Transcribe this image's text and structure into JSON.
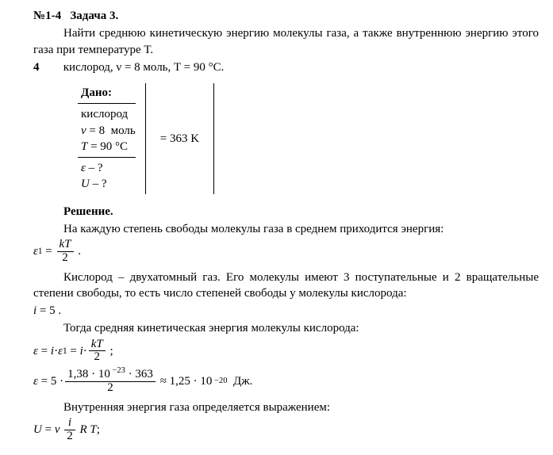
{
  "header": {
    "num": "№1-4",
    "task_label": "Задача 3."
  },
  "prompt": {
    "p1": "Найти среднюю кинетическую энергию молекулы газа, а также внутреннюю энергию этого газа при температуре T.",
    "row_num": "4",
    "row_text": "кислород,  ν = 8 моль,  T = 90 °C."
  },
  "dano": {
    "title": "Дано:",
    "l1": "кислород",
    "l2": "ν = 8  моль",
    "l3_left": "T = 90 °C",
    "conv": "= 363  K",
    "q1": "ε – ?",
    "q2": "U – ?"
  },
  "solution": {
    "title": "Решение.",
    "s1": "На каждую степень свободы молекулы газа в среднем приходится энергия:",
    "eq1_lhs": "ε",
    "eq1_sub": "1",
    "eq1_frac_num": "kT",
    "eq1_frac_den": "2",
    "s2": "Кислород – двухатомный газ. Его молекулы имеют 3 поступательные и 2 вращательные степени свободы, то есть число степеней свободы у молекулы кислорода:",
    "eq2": "i = 5 .",
    "s3": "Тогда средняя кинетическая энергия молекулы кислорода:",
    "eq3_a": "ε = i · ε",
    "eq3_a_sub": "1",
    "eq3_b": " = i ·",
    "eq3_frac_num": "kT",
    "eq3_frac_den": "2",
    "eq4_a": "ε = 5 ·",
    "eq4_frac_num": "1,38 · 10⁻²³ · 363",
    "eq4_frac_den": "2",
    "eq4_b": " ≈ 1,25 · 10⁻²⁰  Дж.",
    "s4": "Внутренняя энергия газа определяется выражением:",
    "eq5_a": "U = ν ",
    "eq5_frac_num": "i",
    "eq5_frac_den": "2",
    "eq5_b": " R T ;"
  }
}
